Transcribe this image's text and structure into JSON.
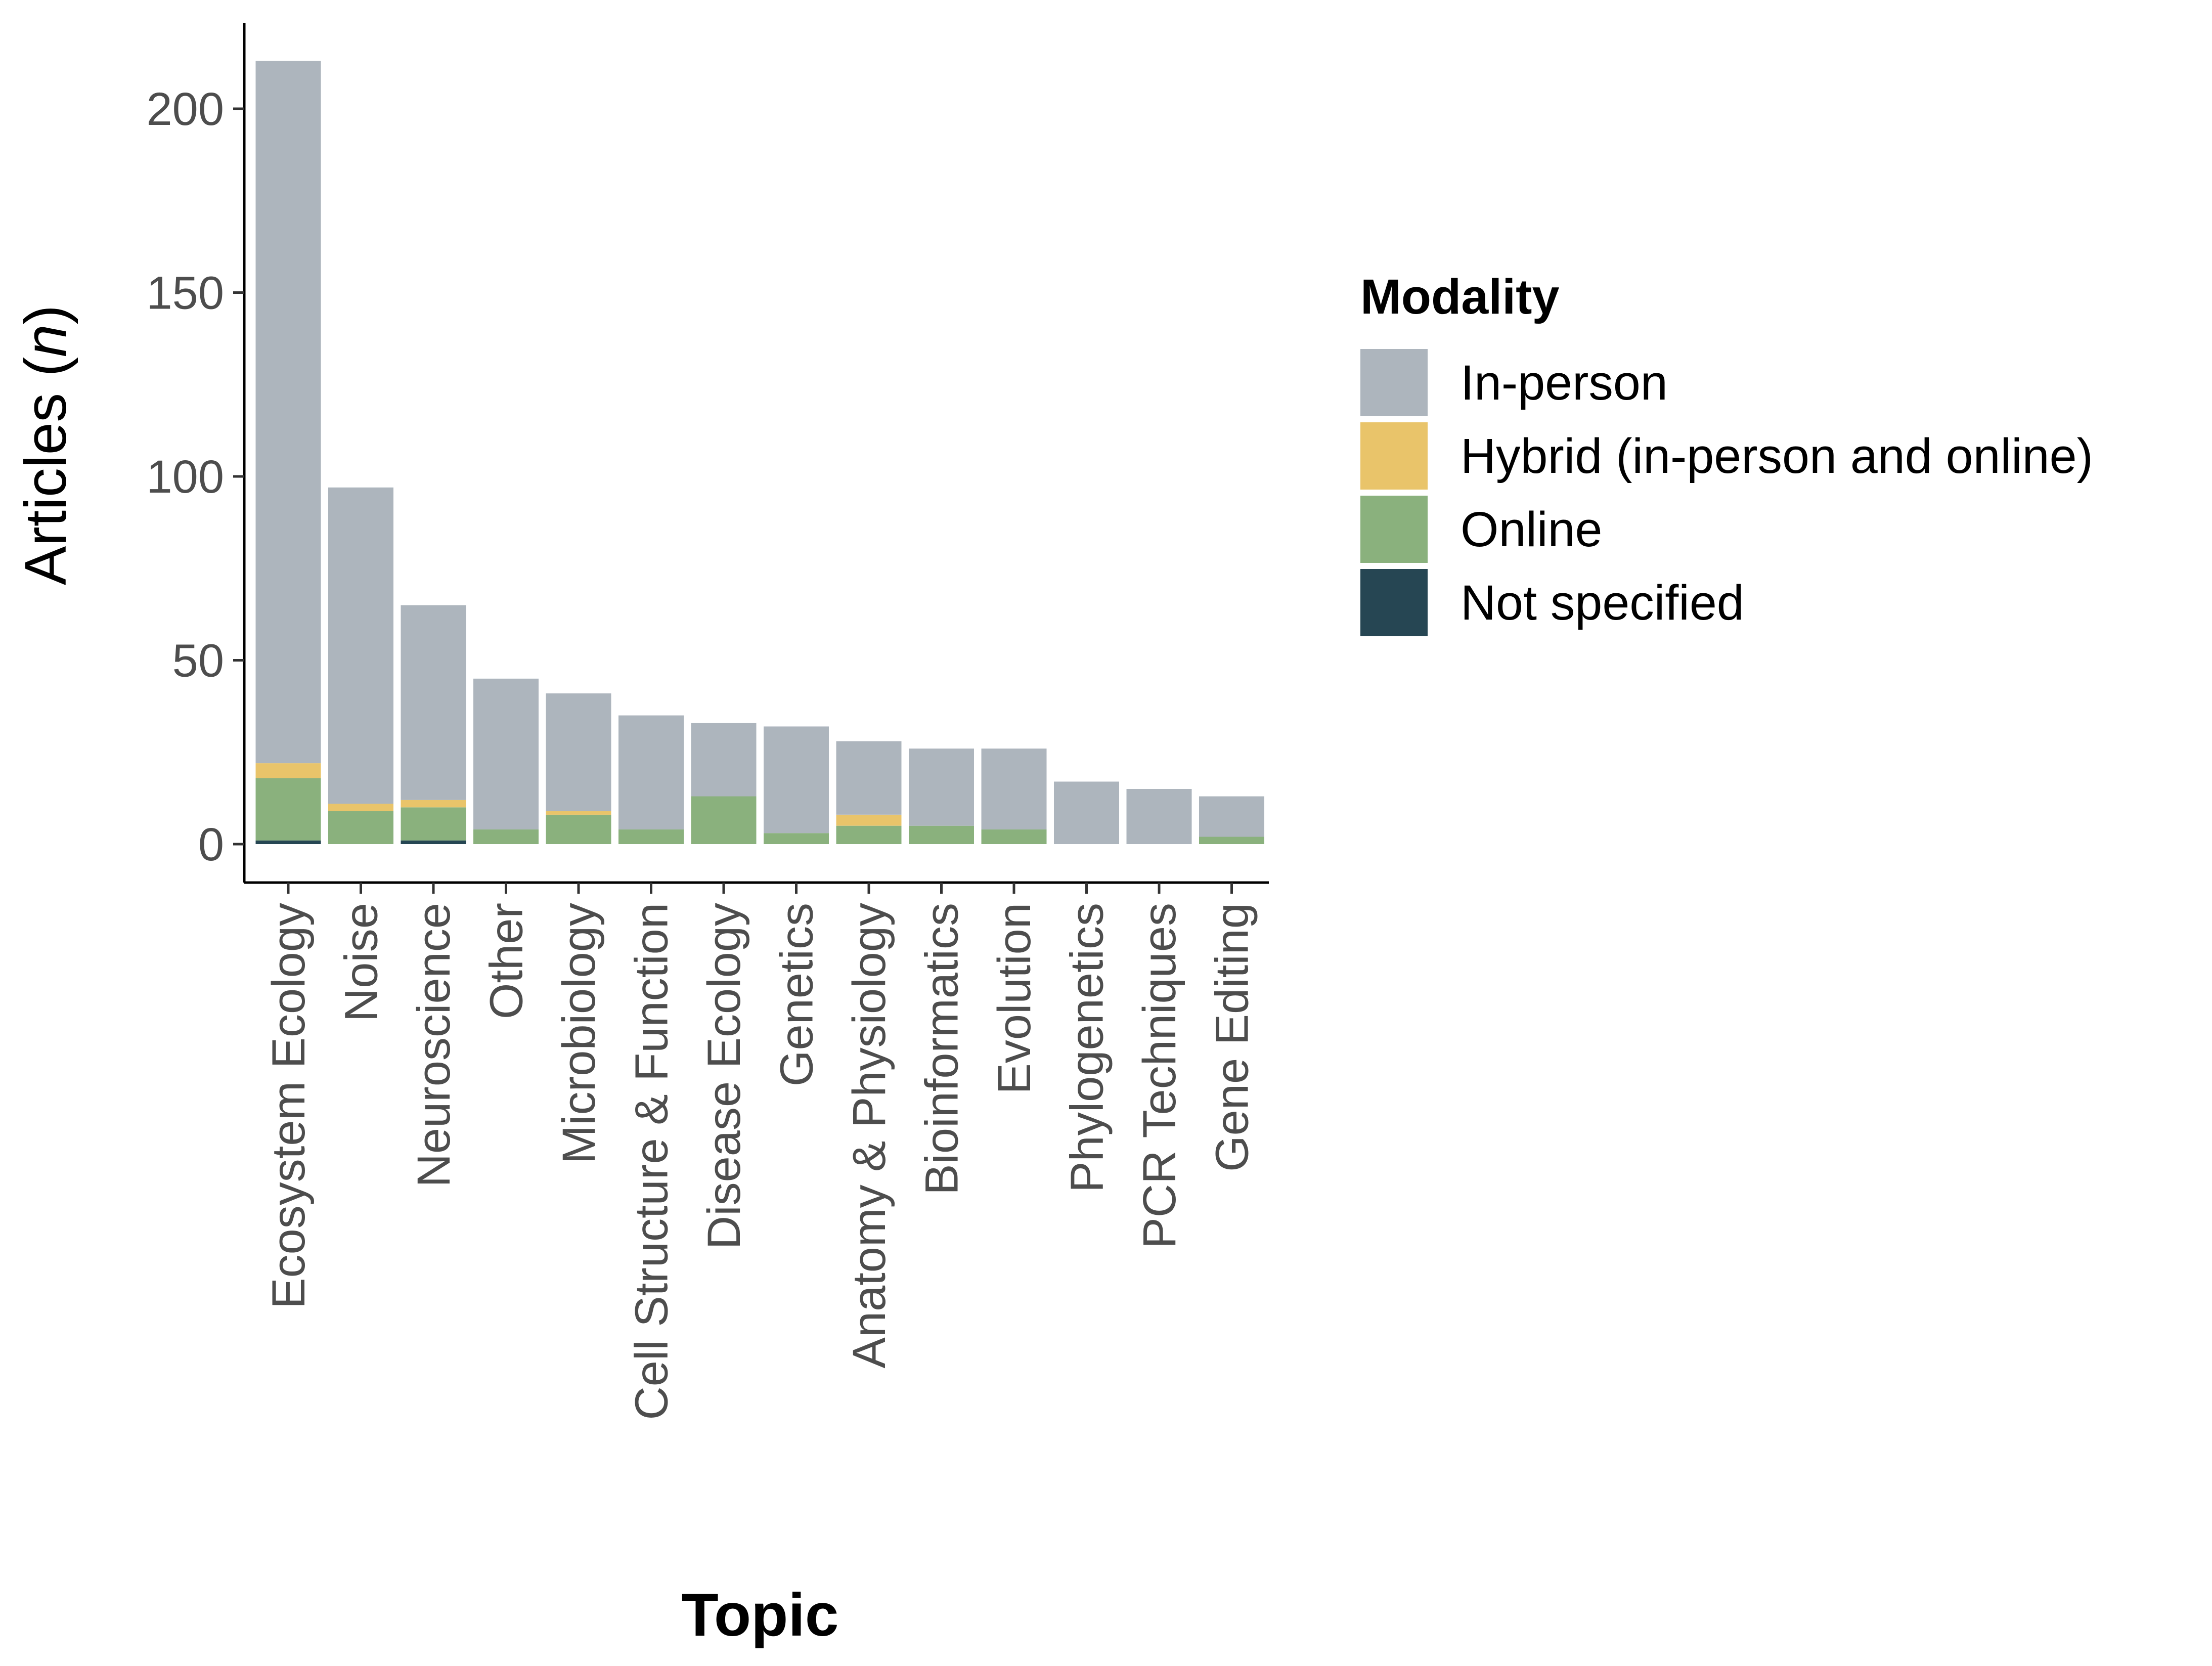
{
  "chart_data": {
    "type": "bar",
    "stacked": true,
    "title": "",
    "xlabel": "Topic",
    "ylabel_main": "Articles (",
    "ylabel_italic": "n",
    "ylabel_close": ")",
    "ylim": [
      0,
      220
    ],
    "yticks": [
      0,
      50,
      100,
      150,
      200
    ],
    "grid": false,
    "legend": {
      "title": "Modality",
      "placement": "right"
    },
    "categories": [
      "Ecosystem Ecology",
      "Noise",
      "Neuroscience",
      "Other",
      "Microbiology",
      "Cell Structure & Function",
      "Disease Ecology",
      "Genetics",
      "Anatomy & Physiology",
      "Bioinformatics",
      "Evolution",
      "Phylogenetics",
      "PCR Techniques",
      "Gene Editing"
    ],
    "series": [
      {
        "name": "Not specified",
        "color": "#264653",
        "values": [
          1,
          0,
          1,
          0,
          0,
          0,
          0,
          0,
          0,
          0,
          0,
          0,
          0,
          0
        ]
      },
      {
        "name": "Online",
        "color": "#8AB17D",
        "values": [
          17,
          9,
          9,
          4,
          8,
          4,
          13,
          3,
          5,
          5,
          4,
          0,
          0,
          2
        ]
      },
      {
        "name": "Hybrid (in-person and online)",
        "color": "#E9C46A",
        "values": [
          4,
          2,
          2,
          0,
          1,
          0,
          0,
          0,
          3,
          0,
          0,
          0,
          0,
          0
        ]
      },
      {
        "name": "In-person",
        "color": "#ADB5BD",
        "values": [
          191,
          86,
          53,
          41,
          32,
          31,
          20,
          29,
          20,
          21,
          22,
          17,
          15,
          11
        ]
      }
    ],
    "legend_order": [
      "In-person",
      "Hybrid (in-person and online)",
      "Online",
      "Not specified"
    ]
  }
}
